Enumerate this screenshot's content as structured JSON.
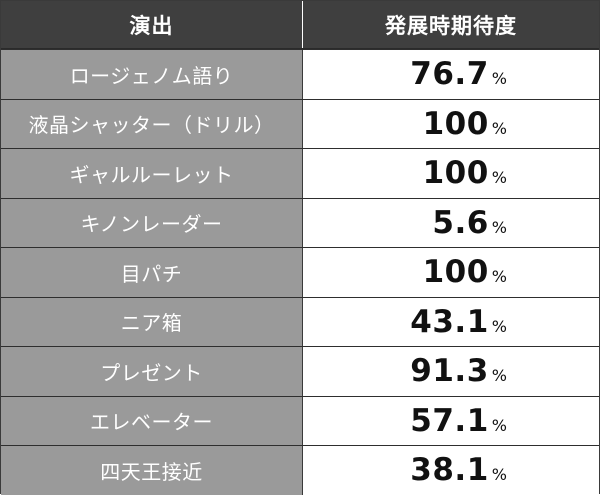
{
  "table": {
    "header": {
      "col1": "演出",
      "col2": "発展時期待度"
    },
    "rows": [
      {
        "name": "ロージェノム語り",
        "value": "76.7",
        "unit": "%"
      },
      {
        "name": "液晶シャッター（ドリル）",
        "value": "100",
        "unit": "%"
      },
      {
        "name": "ギャルルーレット",
        "value": "100",
        "unit": "%"
      },
      {
        "name": "キノンレーダー",
        "value": "5.6",
        "unit": "%"
      },
      {
        "name": "目パチ",
        "value": "100",
        "unit": "%"
      },
      {
        "name": "ニア箱",
        "value": "43.1",
        "unit": "%"
      },
      {
        "name": "プレゼント",
        "value": "91.3",
        "unit": "%"
      },
      {
        "name": "エレベーター",
        "value": "57.1",
        "unit": "%"
      },
      {
        "name": "四天王接近",
        "value": "38.1",
        "unit": "%"
      }
    ]
  }
}
